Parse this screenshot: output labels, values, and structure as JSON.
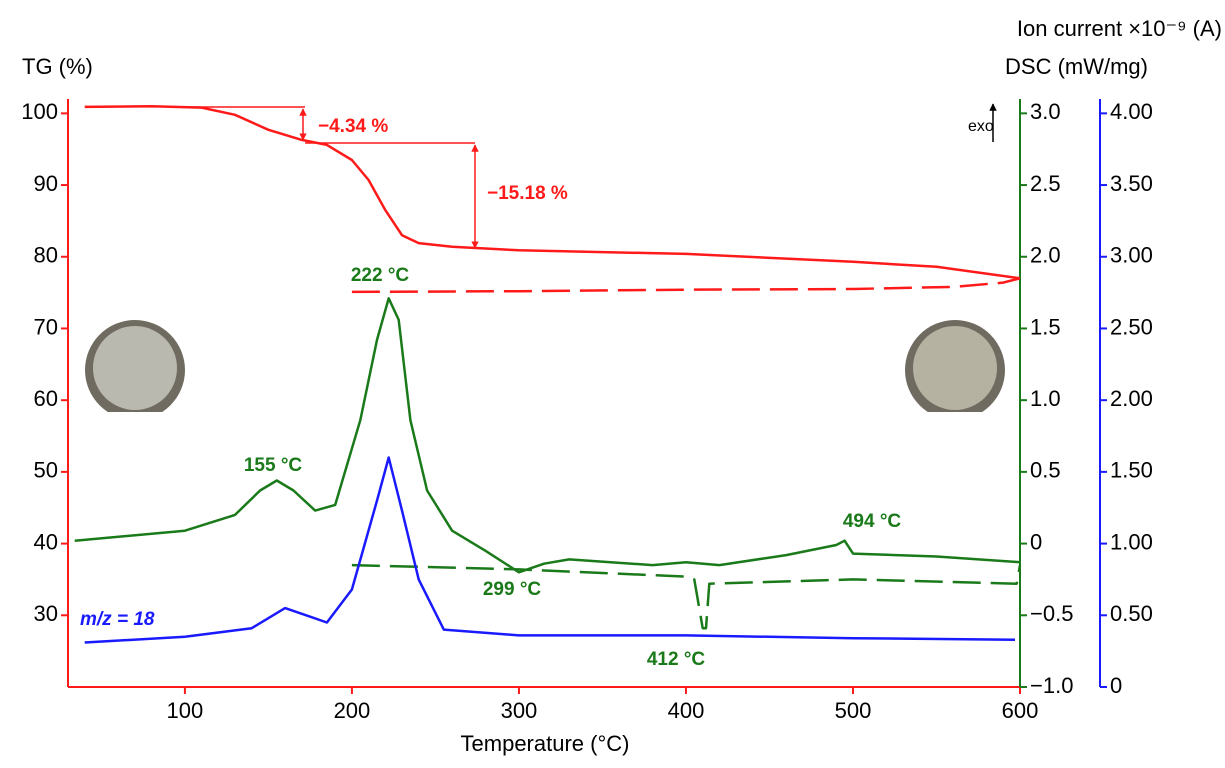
{
  "chart_data": {
    "type": "line",
    "x_label": "Temperature (°C)",
    "y_label": "TG (%)",
    "y2_label": "DSC (mW/mg)",
    "y3_label": "Ion current ×10⁻⁹ (A)",
    "xlim": [
      30,
      600
    ],
    "xticks": [
      100,
      200,
      300,
      400,
      500,
      600
    ],
    "ylim": [
      20,
      102
    ],
    "yticks": [
      30,
      40,
      50,
      60,
      70,
      80,
      90,
      100
    ],
    "y2lim": [
      -1,
      3.1
    ],
    "y2ticks": [
      {
        "value": -1,
        "label": "−1.0"
      },
      {
        "value": -0.5,
        "label": "−0.5"
      },
      0,
      {
        "value": 0.5,
        "label": "0.5"
      },
      {
        "value": 1,
        "label": "1.0"
      },
      {
        "value": 1.5,
        "label": "1.5"
      },
      {
        "value": 2,
        "label": "2.0"
      },
      {
        "value": 2.5,
        "label": "2.5"
      },
      {
        "value": 3,
        "label": "3.0"
      }
    ],
    "y3lim": [
      0,
      4.1
    ],
    "y3ticks": [
      0,
      {
        "value": 0.5,
        "label": "0.50"
      },
      {
        "value": 1,
        "label": "1.00"
      },
      {
        "value": 1.5,
        "label": "1.50"
      },
      {
        "value": 2,
        "label": "2.00"
      },
      {
        "value": 2.5,
        "label": "2.50"
      },
      {
        "value": 3,
        "label": "3.00"
      },
      {
        "value": 3.5,
        "label": "3.50"
      },
      {
        "value": 4,
        "label": "4.00"
      }
    ],
    "axis_colors": {
      "y": "#ff1a1a",
      "y2": "#1a7a1a",
      "y3": "#1a1aff"
    },
    "series": [
      {
        "color": "#ff1a1a",
        "axis": "y",
        "dashed": false,
        "x": [
          40,
          80,
          110,
          130,
          150,
          170,
          185,
          200,
          210,
          220,
          230,
          240,
          260,
          300,
          400,
          500,
          550,
          600
        ],
        "values": [
          100.9,
          101,
          100.8,
          99.8,
          97.7,
          96.3,
          95.6,
          93.5,
          90.7,
          86.5,
          83,
          81.9,
          81.4,
          80.9,
          80.4,
          79.3,
          78.6,
          77
        ]
      },
      {
        "color": "#ff1a1a",
        "axis": "y",
        "dashed": true,
        "x": [
          200,
          300,
          400,
          500,
          560,
          590,
          600
        ],
        "values": [
          75.1,
          75.2,
          75.4,
          75.5,
          75.8,
          76.4,
          77
        ]
      },
      {
        "color": "#1a7a1a",
        "axis": "y2",
        "dashed": false,
        "x": [
          34,
          100,
          130,
          145,
          155,
          165,
          178,
          190,
          205,
          215,
          222,
          228,
          235,
          245,
          260,
          280,
          300,
          315,
          330,
          380,
          400,
          420,
          460,
          490,
          495,
          500,
          550,
          600
        ],
        "values": [
          0.02,
          0.09,
          0.2,
          0.37,
          0.44,
          0.37,
          0.23,
          0.27,
          0.86,
          1.42,
          1.71,
          1.56,
          0.86,
          0.37,
          0.09,
          -0.05,
          -0.2,
          -0.14,
          -0.11,
          -0.15,
          -0.13,
          -0.15,
          -0.08,
          -0.01,
          0.02,
          -0.07,
          -0.09,
          -0.13
        ]
      },
      {
        "color": "#1a7a1a",
        "axis": "y2",
        "dashed": true,
        "x": [
          200,
          300,
          400,
          405,
          410,
          412,
          414,
          500,
          598,
          600
        ],
        "values": [
          -0.15,
          -0.18,
          -0.23,
          -0.25,
          -0.59,
          -0.59,
          -0.28,
          -0.25,
          -0.28,
          -0.15
        ]
      },
      {
        "color": "#1a1aff",
        "axis": "y3",
        "dashed": false,
        "x": [
          40,
          100,
          140,
          160,
          175,
          185,
          200,
          215,
          222,
          230,
          240,
          255,
          300,
          400,
          500,
          597
        ],
        "values": [
          0.31,
          0.35,
          0.41,
          0.55,
          0.49,
          0.45,
          0.68,
          1.3,
          1.6,
          1.23,
          0.75,
          0.4,
          0.36,
          0.36,
          0.34,
          0.33
        ]
      }
    ],
    "annotations": [
      {
        "text": "−4.34 %",
        "color": "#ff1a1a"
      },
      {
        "text": "−15.18 %",
        "color": "#ff1a1a"
      },
      {
        "text": "222 °C",
        "color": "#1a7a1a"
      },
      {
        "text": "155 °C",
        "color": "#1a7a1a"
      },
      {
        "text": "299 °C",
        "color": "#1a7a1a"
      },
      {
        "text": "412 °C",
        "color": "#1a7a1a"
      },
      {
        "text": "494 °C",
        "color": "#1a7a1a"
      },
      {
        "text": "m/z = 18",
        "color": "#1a1aff"
      },
      {
        "text": "exo",
        "color": "#000000"
      }
    ]
  }
}
